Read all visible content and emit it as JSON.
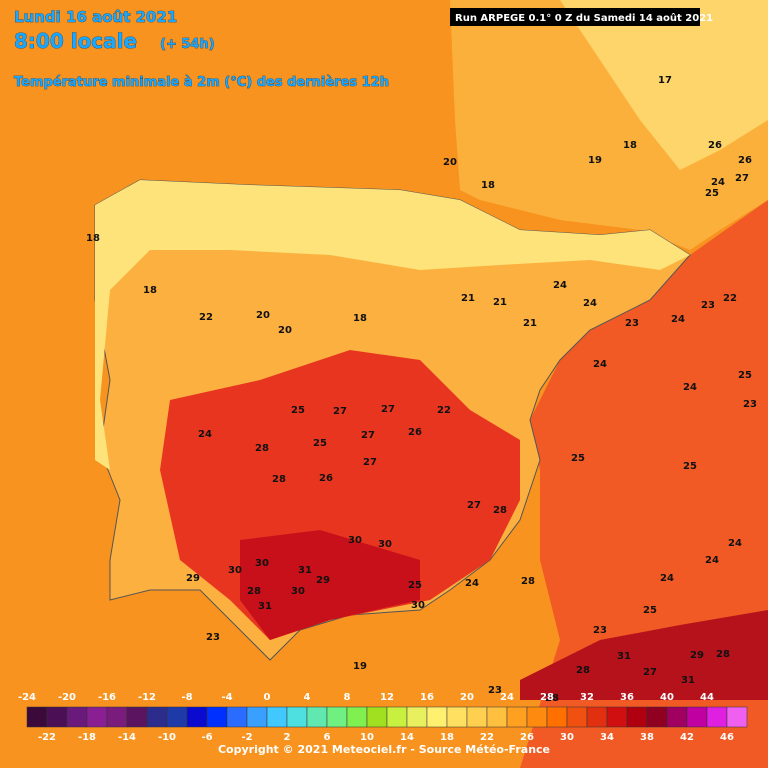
{
  "header": {
    "date": "Lundi 16 août 2021",
    "time": "8:00 locale",
    "lead": "(+ 54h)",
    "subtitle": "Température minimale à 2m (°C) des dernières 12h",
    "run": "Run ARPEGE 0.1° 0 Z du Samedi 14 août 2021"
  },
  "colorbar": {
    "top_ticks": [
      -24,
      -20,
      -16,
      -12,
      -8,
      -4,
      0,
      4,
      8,
      12,
      16,
      20,
      24,
      28,
      32,
      36,
      40,
      44
    ],
    "bottom_ticks": [
      -22,
      -18,
      -14,
      -10,
      -6,
      -2,
      2,
      6,
      10,
      14,
      18,
      22,
      26,
      30,
      34,
      38,
      42,
      46
    ],
    "range": [
      -24,
      48
    ],
    "colors": [
      "#3b0a3a",
      "#4b0f56",
      "#6a1a7a",
      "#8a1f94",
      "#7a1c7c",
      "#5a1460",
      "#2c2c8c",
      "#1e3aa8",
      "#0b0bd0",
      "#0030ff",
      "#2a6cff",
      "#3aa0ff",
      "#40c8ff",
      "#4ee0e0",
      "#60e8b0",
      "#70f080",
      "#80f050",
      "#a0e020",
      "#c8f040",
      "#e8f060",
      "#fff070",
      "#ffe060",
      "#ffd050",
      "#ffc040",
      "#ffa020",
      "#ff8a10",
      "#ff7000",
      "#f05010",
      "#e03010",
      "#d01010",
      "#b00010",
      "#900020",
      "#a00060",
      "#c000a0",
      "#e020e0",
      "#f060f0"
    ]
  },
  "map": {
    "labels": [
      20,
      18,
      19,
      18,
      17,
      26,
      26,
      24,
      27,
      25,
      18,
      18,
      22,
      20,
      20,
      18,
      21,
      21,
      24,
      24,
      21,
      23,
      24,
      23,
      22,
      24,
      24,
      25,
      23,
      25,
      25,
      25,
      27,
      27,
      24,
      28,
      25,
      27,
      26,
      22,
      28,
      26,
      27,
      27,
      28,
      30,
      30,
      31,
      30,
      30,
      29,
      28,
      30,
      29,
      31,
      25,
      24,
      28,
      30,
      25,
      24,
      24,
      24,
      23,
      23,
      31,
      27,
      29,
      28,
      31,
      28,
      28,
      23,
      19
    ]
  },
  "footer": {
    "copyright": "Copyright © 2021 Meteociel.fr - Source Météo-France"
  }
}
